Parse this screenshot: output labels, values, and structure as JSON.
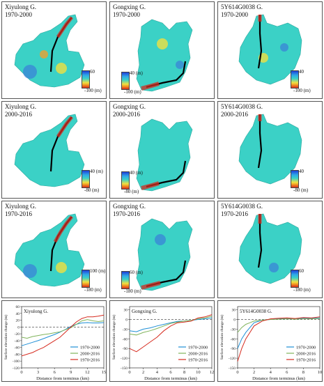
{
  "maps": [
    {
      "glacier": "Xiyulong G.",
      "period": "1970-2000",
      "cb_top": "60",
      "cb_bot": "-100 (m)"
    },
    {
      "glacier": "Gongxing G.",
      "period": "1970-2000",
      "cb_top": "40 (m)",
      "cb_bot": "-100 (m)"
    },
    {
      "glacier": "5Y614G0038 G.",
      "period": "1970-2000",
      "cb_top": "40",
      "cb_bot": "-100 (m)"
    },
    {
      "glacier": "Xiyulong G.",
      "period": "2000-2016",
      "cb_top": "40 (m)",
      "cb_bot": "-80 (m)"
    },
    {
      "glacier": "Gongxing G.",
      "period": "2000-2016",
      "cb_top": "40 (m)",
      "cb_bot": "-80 (m)"
    },
    {
      "glacier": "5Y614G0038 G.",
      "period": "2000-2016",
      "cb_top": "40",
      "cb_bot": "-80 (m)"
    },
    {
      "glacier": "Xiyulong G.",
      "period": "1970-2016",
      "cb_top": "100 (m)",
      "cb_bot": "-180 (m)"
    },
    {
      "glacier": "Gongxing G.",
      "period": "1970-2016",
      "cb_top": "60 (m)",
      "cb_bot": "-180 (m)"
    },
    {
      "glacier": "5Y614G0038 G.",
      "period": "1970-2016",
      "cb_top": "60",
      "cb_bot": "-180 (m)"
    }
  ],
  "colors": {
    "s1970_2000": "#1f8fd6",
    "s2000_2016": "#7fb35a",
    "s1970_2016": "#d62a1e",
    "centerline": "#000000",
    "map_bg": "#3bd1c6"
  },
  "chart_data": [
    {
      "type": "line",
      "title": "Xiyulong G.",
      "xlabel": "Distance from terminus (km)",
      "ylabel": "Surface elevation change (m)",
      "xlim": [
        0,
        15
      ],
      "ylim": [
        -120,
        60
      ],
      "xticks": [
        0,
        3,
        6,
        9,
        12,
        15
      ],
      "yticks": [
        -120,
        -100,
        -80,
        -60,
        -40,
        -20,
        0,
        20,
        40,
        60
      ],
      "zero_line": "dashed",
      "legend": "bottom-right",
      "series": [
        {
          "name": "1970-2000",
          "color_key": "s1970_2000",
          "x": [
            0,
            1,
            2,
            3,
            4,
            5,
            6,
            7,
            8,
            9,
            10,
            11,
            12,
            13,
            14,
            15
          ],
          "values": [
            -55,
            -50,
            -45,
            -40,
            -34,
            -28,
            -22,
            -15,
            -7,
            2,
            8,
            12,
            13,
            12,
            12,
            13
          ]
        },
        {
          "name": "2000-2016",
          "color_key": "s2000_2016",
          "x": [
            0,
            1,
            2,
            3,
            4,
            5,
            6,
            7,
            8,
            9,
            10,
            11,
            12,
            13,
            14,
            15
          ],
          "values": [
            -30,
            -33,
            -28,
            -25,
            -22,
            -20,
            -17,
            -14,
            -8,
            -2,
            8,
            18,
            22,
            18,
            16,
            18
          ]
        },
        {
          "name": "1970-2016",
          "color_key": "s1970_2016",
          "x": [
            0,
            1,
            2,
            3,
            4,
            5,
            6,
            7,
            8,
            9,
            10,
            11,
            12,
            13,
            14,
            15
          ],
          "values": [
            -85,
            -80,
            -75,
            -67,
            -60,
            -50,
            -40,
            -30,
            -15,
            0,
            15,
            25,
            30,
            30,
            32,
            35
          ]
        }
      ]
    },
    {
      "type": "line",
      "title": "Gongxing G.",
      "xlabel": "Distance from terminus (km)",
      "ylabel": "Surface elevation change (m)",
      "xlim": [
        0,
        12
      ],
      "ylim": [
        -150,
        40
      ],
      "xticks": [
        0,
        2,
        4,
        6,
        8,
        10,
        12
      ],
      "yticks": [
        -150,
        -120,
        -90,
        -60,
        -30,
        0,
        30
      ],
      "zero_line": "dashed",
      "legend": "bottom-right",
      "series": [
        {
          "name": "1970-2000",
          "color_key": "s1970_2000",
          "x": [
            0,
            1,
            2,
            3,
            4,
            5,
            6,
            7,
            8,
            9,
            10,
            11,
            12
          ],
          "values": [
            -35,
            -38,
            -30,
            -26,
            -20,
            -15,
            -10,
            -6,
            -5,
            -3,
            0,
            2,
            5
          ]
        },
        {
          "name": "2000-2016",
          "color_key": "s2000_2016",
          "x": [
            0,
            1,
            2,
            3,
            4,
            5,
            6,
            7,
            8,
            9,
            10,
            11,
            12
          ],
          "values": [
            -45,
            -48,
            -40,
            -35,
            -28,
            -20,
            -12,
            -8,
            -5,
            -3,
            2,
            5,
            10
          ]
        },
        {
          "name": "1970-2016",
          "color_key": "s1970_2016",
          "x": [
            0,
            1,
            2,
            3,
            4,
            5,
            6,
            7,
            8,
            9,
            10,
            11,
            12
          ],
          "values": [
            -90,
            -100,
            -85,
            -70,
            -55,
            -35,
            -20,
            -10,
            -8,
            -5,
            5,
            8,
            15
          ]
        }
      ]
    },
    {
      "type": "line",
      "title": "5Y614G0038 G.",
      "xlabel": "Distance from terminus (km)",
      "ylabel": "Surface elevation change (m)",
      "xlim": [
        0,
        10
      ],
      "ylim": [
        -150,
        40
      ],
      "xticks": [
        0,
        2,
        4,
        6,
        8,
        10
      ],
      "yticks": [
        -150,
        -120,
        -90,
        -60,
        -30,
        0,
        30
      ],
      "zero_line": "dashed",
      "legend": "bottom-right",
      "series": [
        {
          "name": "1970-2000",
          "color_key": "s1970_2000",
          "x": [
            0,
            0.5,
            1,
            1.5,
            2,
            3,
            4,
            5,
            6,
            7,
            8,
            9,
            10
          ],
          "values": [
            -90,
            -60,
            -40,
            -25,
            -10,
            -2,
            0,
            2,
            3,
            2,
            4,
            3,
            5
          ]
        },
        {
          "name": "2000-2016",
          "color_key": "s2000_2016",
          "x": [
            0,
            0.5,
            1,
            1.5,
            2,
            3,
            4,
            5,
            6,
            7,
            8,
            9,
            10
          ],
          "values": [
            -40,
            -25,
            -15,
            -10,
            -5,
            -2,
            0,
            1,
            2,
            1,
            2,
            2,
            3
          ]
        },
        {
          "name": "1970-2016",
          "color_key": "s1970_2016",
          "x": [
            0,
            0.5,
            1,
            1.5,
            2,
            3,
            4,
            5,
            6,
            7,
            8,
            9,
            10
          ],
          "values": [
            -130,
            -90,
            -60,
            -40,
            -20,
            -5,
            2,
            4,
            5,
            3,
            6,
            5,
            8
          ]
        }
      ]
    }
  ]
}
